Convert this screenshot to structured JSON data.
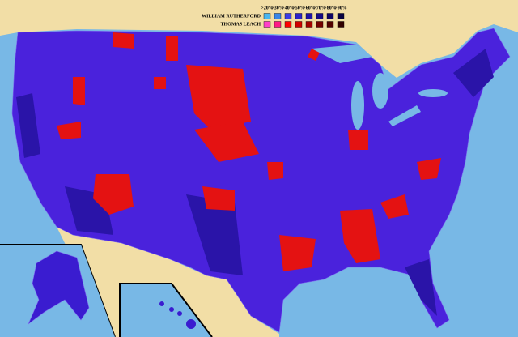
{
  "legend": {
    "thresholds": [
      ">20%",
      ">30%",
      ">40%",
      ">50%",
      ">60%",
      ">70%",
      ">80%",
      ">90%"
    ],
    "candidates": [
      {
        "name": "WILLIAM RUTHERFORD",
        "colors": [
          "#49b6f0",
          "#3a86e6",
          "#3b3ce4",
          "#2c22c8",
          "#1e10a6",
          "#170a86",
          "#110664",
          "#0a0342"
        ]
      },
      {
        "name": "THOMAS LEACH",
        "colors": [
          "#ff3ec8",
          "#ff1a86",
          "#ff0000",
          "#d20000",
          "#a30000",
          "#740000",
          "#520000",
          "#320000"
        ]
      }
    ]
  }
}
